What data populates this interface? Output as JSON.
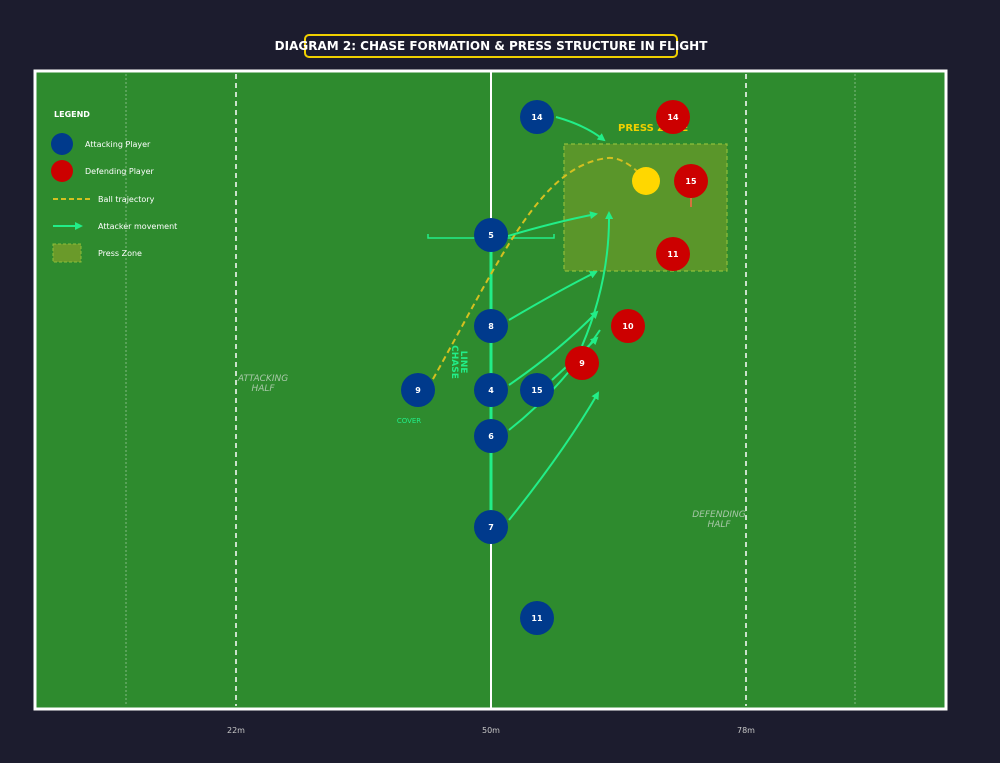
{
  "title": "DIAGRAM 2: CHASE FORMATION & PRESS STRUCTURE IN FLIGHT",
  "colors": {
    "background": "#1c1c2e",
    "pitch": "#2e8b2e",
    "attacker": "#003a8c",
    "defender": "#cc0000",
    "ball": "#ffd700",
    "movement": "#22ee88",
    "trajectory": "#d4c020",
    "press_zone": "#6a9a2a",
    "title_border": "#f0d000"
  },
  "legend": {
    "title": "LEGEND",
    "items": [
      {
        "icon": "attacker-swatch",
        "label": "Attacking Player"
      },
      {
        "icon": "defender-swatch",
        "label": "Defending Player"
      },
      {
        "icon": "dashed-line",
        "label": "Ball trajectory"
      },
      {
        "icon": "arrow",
        "label": "Attacker movement"
      },
      {
        "icon": "zone-swatch",
        "label": "Press Zone"
      }
    ]
  },
  "zones": {
    "press_zone_label": "PRESS ZONE",
    "attacking_half": [
      "ATTACKING",
      "HALF"
    ],
    "defending_half": [
      "DEFENDING",
      "HALF"
    ],
    "chase_line": [
      "CHASE",
      "LINE"
    ],
    "cover": "COVER"
  },
  "axis_labels": [
    "22m",
    "50m",
    "78m"
  ],
  "attackers": [
    "14",
    "5",
    "8",
    "4",
    "15",
    "6",
    "7",
    "11",
    "9"
  ],
  "defenders": [
    "14",
    "15",
    "11",
    "10",
    "9"
  ]
}
